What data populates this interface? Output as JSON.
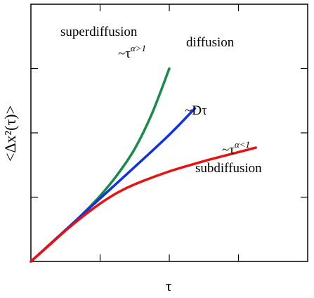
{
  "chart_data": {
    "type": "line",
    "title": "",
    "xlabel": "τ",
    "ylabel": "<Δx²(τ)>",
    "xlim": [
      0,
      4
    ],
    "ylim": [
      0,
      4
    ],
    "grid": false,
    "tick_labels": false,
    "ticks": [
      1,
      2,
      3
    ],
    "series": [
      {
        "color": "#1a8a4a",
        "x": [
          0,
          0.25,
          0.5,
          0.75,
          1.0,
          1.25,
          1.5,
          1.75,
          2.0
        ],
        "y": [
          0,
          0.24,
          0.48,
          0.74,
          1.02,
          1.35,
          1.75,
          2.3,
          3.0
        ]
      },
      {
        "color": "#1030e8",
        "x": [
          0,
          0.5,
          1.0,
          1.5,
          2.0,
          2.37
        ],
        "y": [
          0,
          0.49,
          0.98,
          1.47,
          1.97,
          2.38
        ]
      },
      {
        "color": "#e81010",
        "x": [
          0,
          0.25,
          0.5,
          0.75,
          1.0,
          1.25,
          1.5,
          2.0,
          2.5,
          3.0,
          3.25
        ],
        "y": [
          0,
          0.24,
          0.48,
          0.7,
          0.9,
          1.07,
          1.2,
          1.4,
          1.56,
          1.7,
          1.77
        ]
      }
    ],
    "annotations": {
      "superdiffusion": "superdiffusion",
      "super_law_base": "~τ",
      "super_law_exp": "α>1",
      "diffusion": "diffusion",
      "diffusion_law": "~Dτ",
      "sub_law_base": "~τ",
      "sub_law_exp": "α<1",
      "subdiffusion": "subdiffusion"
    }
  }
}
